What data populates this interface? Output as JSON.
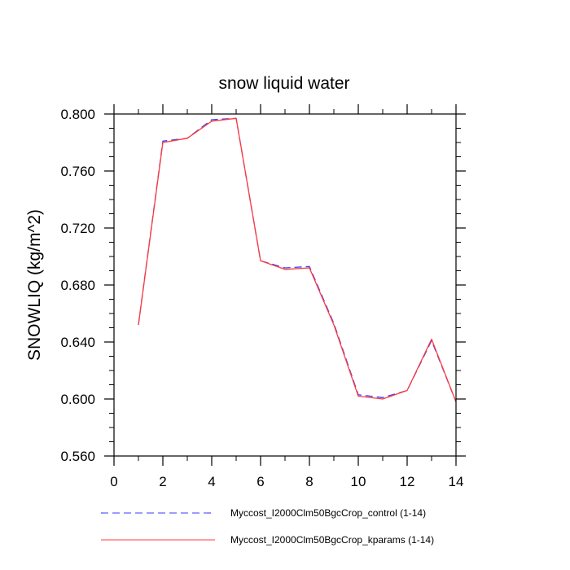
{
  "chart_data": {
    "type": "line",
    "title": "snow liquid water",
    "xlabel": "",
    "ylabel": "SNOWLIQ  (kg/m^2)",
    "xlim": [
      0,
      14
    ],
    "ylim": [
      0.56,
      0.8
    ],
    "x_ticks": [
      0,
      2,
      4,
      6,
      8,
      10,
      12,
      14
    ],
    "x_tick_labels": [
      "0",
      "2",
      "4",
      "6",
      "8",
      "10",
      "12",
      "14"
    ],
    "y_ticks": [
      0.56,
      0.6,
      0.64,
      0.68,
      0.72,
      0.76,
      0.8
    ],
    "y_tick_labels": [
      "0.560",
      "0.600",
      "0.640",
      "0.680",
      "0.720",
      "0.760",
      "0.800"
    ],
    "grid": false,
    "legend_position": "bottom",
    "x": [
      1,
      2,
      3,
      4,
      5,
      6,
      7,
      8,
      9,
      10,
      11,
      12,
      13,
      14
    ],
    "series": [
      {
        "name": "Myccost_I2000Clm50BgcCrop_control (1-14)",
        "color": "#3b3bff",
        "dash": "dashed",
        "values": [
          0.652,
          0.781,
          0.783,
          0.796,
          0.797,
          0.697,
          0.692,
          0.693,
          0.653,
          0.603,
          0.601,
          0.606,
          0.641,
          0.598
        ]
      },
      {
        "name": "Myccost_I2000Clm50BgcCrop_kparams (1-14)",
        "color": "#ff3b3b",
        "dash": "solid",
        "values": [
          0.652,
          0.78,
          0.783,
          0.795,
          0.797,
          0.697,
          0.691,
          0.692,
          0.652,
          0.602,
          0.6,
          0.606,
          0.642,
          0.598
        ]
      }
    ]
  }
}
